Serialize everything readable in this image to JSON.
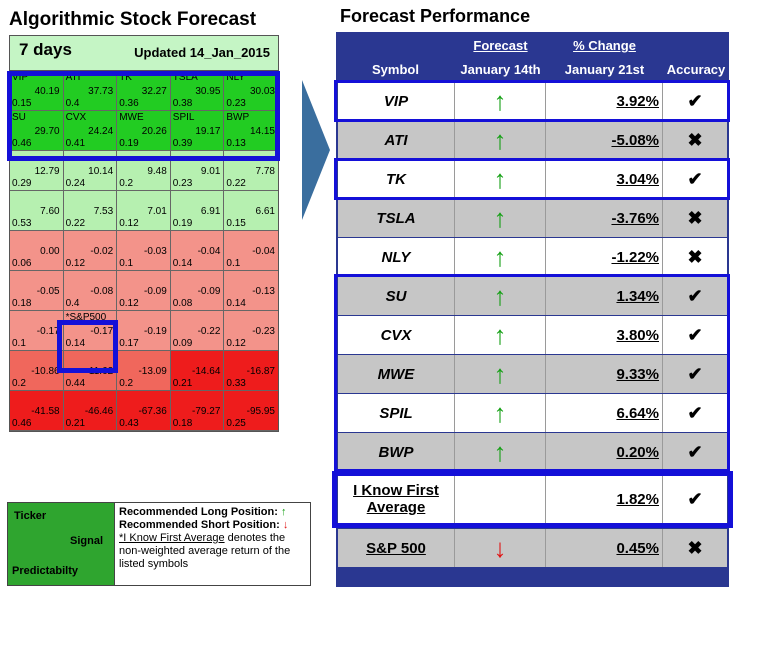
{
  "heatmap": {
    "title": "Algorithmic Stock Forecast",
    "period": "7 days",
    "updated": "Updated 14_Jan_2015",
    "rows": [
      [
        {
          "t": "VIP",
          "r": "40.19",
          "p": "0.15",
          "c": "g1"
        },
        {
          "t": "ATI",
          "r": "37.73",
          "p": "0.4",
          "c": "g1"
        },
        {
          "t": "TK",
          "r": "32.27",
          "p": "0.36",
          "c": "g1"
        },
        {
          "t": "TSLA",
          "r": "30.95",
          "p": "0.38",
          "c": "g1"
        },
        {
          "t": "NLY",
          "r": "30.03",
          "p": "0.23",
          "c": "g1"
        }
      ],
      [
        {
          "t": "SU",
          "r": "29.70",
          "p": "0.46",
          "c": "g1"
        },
        {
          "t": "CVX",
          "r": "24.24",
          "p": "0.41",
          "c": "g1"
        },
        {
          "t": "MWE",
          "r": "20.26",
          "p": "0.19",
          "c": "g1"
        },
        {
          "t": "SPIL",
          "r": "19.17",
          "p": "0.39",
          "c": "g1"
        },
        {
          "t": "BWP",
          "r": "14.15",
          "p": "0.13",
          "c": "g1"
        }
      ],
      [
        {
          "t": "",
          "r": "12.79",
          "p": "0.29",
          "c": "g2"
        },
        {
          "t": "",
          "r": "10.14",
          "p": "0.24",
          "c": "g2"
        },
        {
          "t": "",
          "r": "9.48",
          "p": "0.2",
          "c": "g2"
        },
        {
          "t": "",
          "r": "9.01",
          "p": "0.23",
          "c": "g2"
        },
        {
          "t": "",
          "r": "7.78",
          "p": "0.22",
          "c": "g2"
        }
      ],
      [
        {
          "t": "",
          "r": "7.60",
          "p": "0.53",
          "c": "g2"
        },
        {
          "t": "",
          "r": "7.53",
          "p": "0.22",
          "c": "g2"
        },
        {
          "t": "",
          "r": "7.01",
          "p": "0.12",
          "c": "g2"
        },
        {
          "t": "",
          "r": "6.91",
          "p": "0.19",
          "c": "g2"
        },
        {
          "t": "",
          "r": "6.61",
          "p": "0.15",
          "c": "g2"
        }
      ],
      [
        {
          "t": "",
          "r": "0.00",
          "p": "0.06",
          "c": "r1"
        },
        {
          "t": "",
          "r": "-0.02",
          "p": "0.12",
          "c": "r1"
        },
        {
          "t": "",
          "r": "-0.03",
          "p": "0.1",
          "c": "r1"
        },
        {
          "t": "",
          "r": "-0.04",
          "p": "0.14",
          "c": "r1"
        },
        {
          "t": "",
          "r": "-0.04",
          "p": "0.1",
          "c": "r1"
        }
      ],
      [
        {
          "t": "",
          "r": "-0.05",
          "p": "0.18",
          "c": "r1"
        },
        {
          "t": "",
          "r": "-0.08",
          "p": "0.4",
          "c": "r1"
        },
        {
          "t": "",
          "r": "-0.09",
          "p": "0.12",
          "c": "r1"
        },
        {
          "t": "",
          "r": "-0.09",
          "p": "0.08",
          "c": "r1"
        },
        {
          "t": "",
          "r": "-0.13",
          "p": "0.14",
          "c": "r1"
        }
      ],
      [
        {
          "t": "",
          "r": "-0.17",
          "p": "0.1",
          "c": "r1"
        },
        {
          "t": "*S&P500",
          "r": "-0.17",
          "p": "0.14",
          "c": "r1"
        },
        {
          "t": "",
          "r": "-0.19",
          "p": "0.17",
          "c": "r1"
        },
        {
          "t": "",
          "r": "-0.22",
          "p": "0.09",
          "c": "r1"
        },
        {
          "t": "",
          "r": "-0.23",
          "p": "0.12",
          "c": "r1"
        }
      ],
      [
        {
          "t": "",
          "r": "-10.86",
          "p": "0.2",
          "c": "r2"
        },
        {
          "t": "",
          "r": "-11.62",
          "p": "0.44",
          "c": "r2"
        },
        {
          "t": "",
          "r": "-13.09",
          "p": "0.2",
          "c": "r2"
        },
        {
          "t": "",
          "r": "-14.64",
          "p": "0.21",
          "c": "r3"
        },
        {
          "t": "",
          "r": "-16.87",
          "p": "0.33",
          "c": "r3"
        }
      ],
      [
        {
          "t": "",
          "r": "-41.58",
          "p": "0.46",
          "c": "r3"
        },
        {
          "t": "",
          "r": "-46.46",
          "p": "0.21",
          "c": "r3"
        },
        {
          "t": "",
          "r": "-67.36",
          "p": "0.43",
          "c": "r3"
        },
        {
          "t": "",
          "r": "-79.27",
          "p": "0.18",
          "c": "r3"
        },
        {
          "t": "",
          "r": "-95.95",
          "p": "0.25",
          "c": "r3"
        }
      ]
    ]
  },
  "legend": {
    "ticker": "Ticker",
    "signal": "Signal",
    "predictability": "Predictabilty",
    "long_label": "Recommended Long Position:",
    "long_arrow": "↑",
    "short_label": "Recommended Short Position:",
    "short_arrow": "↓",
    "note_underlined": "*I Know First Average",
    "note_rest": " denotes the non-weighted average return of the listed symbols"
  },
  "performance": {
    "title": "Forecast Performance",
    "headers": {
      "symbol": "Symbol",
      "forecast": "Forecast",
      "forecast_date": "January 14th",
      "change": "% Change",
      "change_date": "January 21st",
      "accuracy": "Accuracy"
    },
    "rows": [
      {
        "symbol": "VIP",
        "signal": "↑",
        "dir": "up",
        "change": "3.92%",
        "acc": "✔",
        "bg": "w"
      },
      {
        "symbol": "ATI",
        "signal": "↑",
        "dir": "up",
        "change": "-5.08%",
        "acc": "✖",
        "bg": "gr"
      },
      {
        "symbol": "TK",
        "signal": "↑",
        "dir": "up",
        "change": "3.04%",
        "acc": "✔",
        "bg": "w"
      },
      {
        "symbol": "TSLA",
        "signal": "↑",
        "dir": "up",
        "change": "-3.76%",
        "acc": "✖",
        "bg": "gr"
      },
      {
        "symbol": "NLY",
        "signal": "↑",
        "dir": "up",
        "change": "-1.22%",
        "acc": "✖",
        "bg": "w"
      },
      {
        "symbol": "SU",
        "signal": "↑",
        "dir": "up",
        "change": "1.34%",
        "acc": "✔",
        "bg": "gr"
      },
      {
        "symbol": "CVX",
        "signal": "↑",
        "dir": "up",
        "change": "3.80%",
        "acc": "✔",
        "bg": "w"
      },
      {
        "symbol": "MWE",
        "signal": "↑",
        "dir": "up",
        "change": "9.33%",
        "acc": "✔",
        "bg": "gr"
      },
      {
        "symbol": "SPIL",
        "signal": "↑",
        "dir": "up",
        "change": "6.64%",
        "acc": "✔",
        "bg": "w"
      },
      {
        "symbol": "BWP",
        "signal": "↑",
        "dir": "up",
        "change": "0.20%",
        "acc": "✔",
        "bg": "gr"
      }
    ],
    "average": {
      "label_line1": "I Know First",
      "label_line2": "Average",
      "change": "1.82%",
      "acc": "✔"
    },
    "sp500": {
      "symbol": "S&P 500",
      "signal": "↓",
      "dir": "down",
      "change": "0.45%",
      "acc": "✖"
    }
  },
  "colors": {
    "highlight": "#1410d8",
    "header_blue": "#2a3791",
    "up": "#14a014",
    "down": "#e01414"
  }
}
